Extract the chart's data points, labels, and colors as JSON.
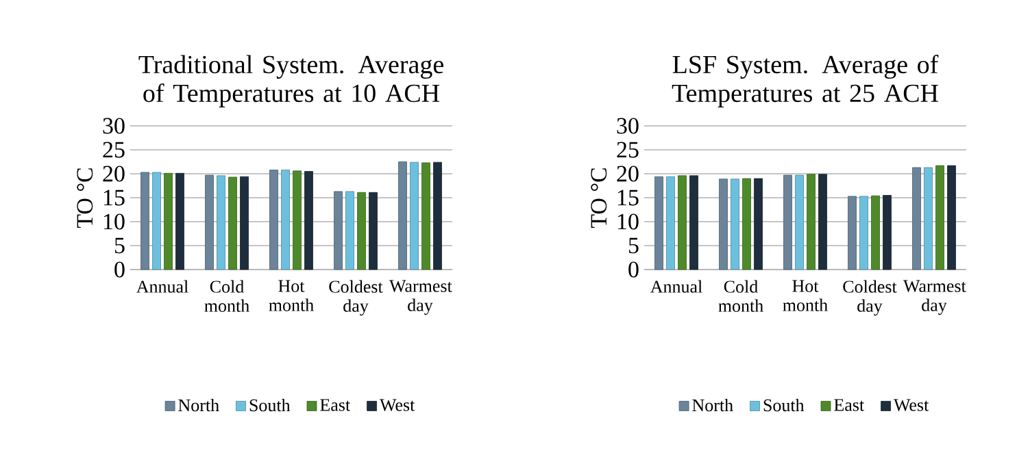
{
  "chart_data": [
    {
      "type": "bar",
      "title": "Traditional System. Average of Temperatures at 10 ACH",
      "ylabel": "TO °C",
      "categories": [
        "Annual",
        "Cold month",
        "Hot month",
        "Coldest day",
        "Warmest day"
      ],
      "series": [
        {
          "name": "North",
          "color": "#6b8499",
          "values": [
            20.3,
            19.7,
            20.8,
            16.3,
            22.5
          ]
        },
        {
          "name": "South",
          "color": "#6cc0de",
          "values": [
            20.3,
            19.6,
            20.8,
            16.3,
            22.4
          ]
        },
        {
          "name": "East",
          "color": "#4e8a2a",
          "values": [
            20.1,
            19.3,
            20.6,
            16.1,
            22.3
          ]
        },
        {
          "name": "West",
          "color": "#1f2e3d",
          "values": [
            20.1,
            19.4,
            20.5,
            16.1,
            22.4
          ]
        }
      ],
      "ylim": [
        0,
        30
      ],
      "yticks": [
        0,
        5,
        10,
        15,
        20,
        25,
        30
      ],
      "grid": "y",
      "legend": "bottom"
    },
    {
      "type": "bar",
      "title": "LSF System. Average of Temperatures at 25 ACH",
      "ylabel": "TO °C",
      "categories": [
        "Annual",
        "Cold month",
        "Hot month",
        "Coldest day",
        "Warmest day"
      ],
      "series": [
        {
          "name": "North",
          "color": "#6b8499",
          "values": [
            19.4,
            18.9,
            19.7,
            15.3,
            21.3
          ]
        },
        {
          "name": "South",
          "color": "#6cc0de",
          "values": [
            19.4,
            18.9,
            19.7,
            15.3,
            21.3
          ]
        },
        {
          "name": "East",
          "color": "#4e8a2a",
          "values": [
            19.6,
            19.0,
            19.9,
            15.4,
            21.7
          ]
        },
        {
          "name": "West",
          "color": "#1f2e3d",
          "values": [
            19.6,
            19.0,
            19.9,
            15.5,
            21.7
          ]
        }
      ],
      "ylim": [
        0,
        30
      ],
      "yticks": [
        0,
        5,
        10,
        15,
        20,
        25,
        30
      ],
      "grid": "y",
      "legend": "bottom"
    }
  ]
}
